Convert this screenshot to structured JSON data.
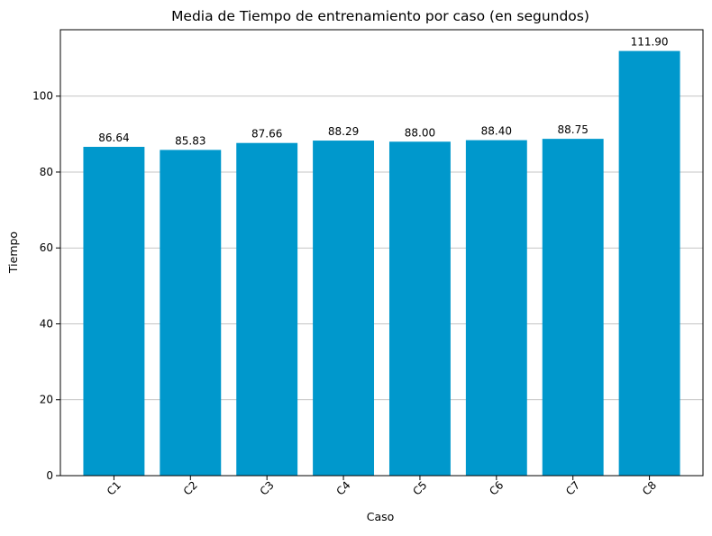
{
  "chart_data": {
    "type": "bar",
    "title": "Media de Tiempo de entrenamiento por caso (en segundos)",
    "xlabel": "Caso",
    "ylabel": "Tiempo",
    "categories": [
      "C1",
      "C2",
      "C3",
      "C4",
      "C5",
      "C6",
      "C7",
      "C8"
    ],
    "values": [
      86.64,
      85.83,
      87.66,
      88.29,
      88.0,
      88.4,
      88.75,
      111.9
    ],
    "data_labels": [
      "86.64",
      "85.83",
      "87.66",
      "88.29",
      "88.00",
      "88.40",
      "88.75",
      "111.90"
    ],
    "ylim": [
      0,
      117.5
    ],
    "yticks": [
      0,
      20,
      40,
      60,
      80,
      100
    ],
    "grid": "y-major",
    "x_tick_rotation_deg": 45,
    "colors": {
      "bar": "#0098cc",
      "grid": "#b0b0b0",
      "axis": "#000000"
    }
  }
}
